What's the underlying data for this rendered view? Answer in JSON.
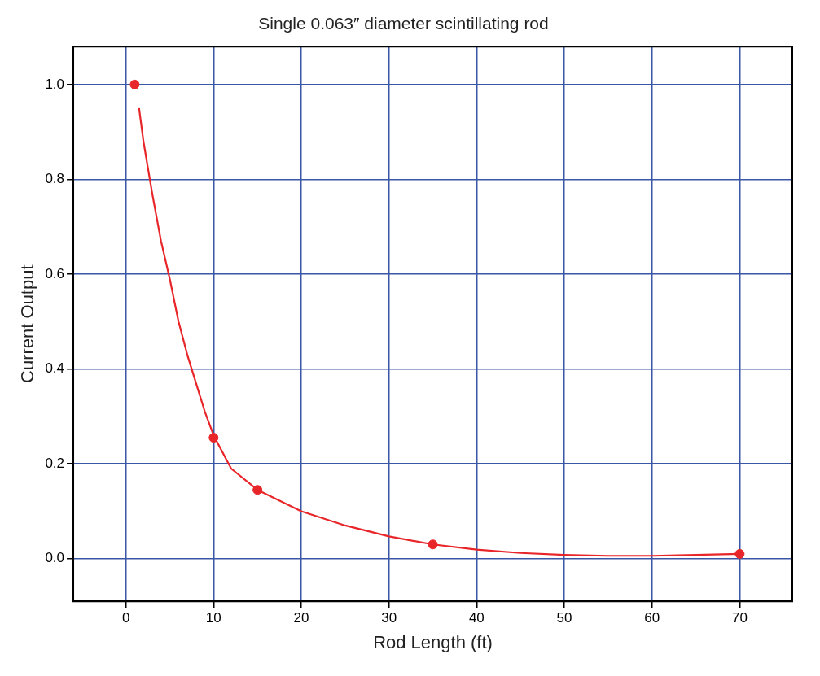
{
  "chart_data": {
    "type": "scatter",
    "title": "Single 0.063″ diameter scintillating rod",
    "xlabel": "Rod Length (ft)",
    "ylabel": "Current Output",
    "xlim": [
      -6,
      76
    ],
    "xticks": [
      0,
      10,
      20,
      30,
      40,
      50,
      60,
      70
    ],
    "ylim": [
      -0.09,
      1.08
    ],
    "yticks": [
      {
        "value": 0,
        "label": "0.0"
      },
      0.2,
      0.4,
      0.6,
      0.8,
      {
        "value": 1,
        "label": "1.0"
      }
    ],
    "grid": true,
    "legend": false,
    "series": [
      {
        "type": "line",
        "marker": "none",
        "line_style": "solid",
        "color": "#e8262a",
        "x": [
          1.5,
          2,
          3,
          4,
          5,
          6,
          7,
          8,
          9,
          10,
          12,
          15,
          20,
          25,
          30,
          35,
          40,
          45,
          50,
          55,
          60,
          65,
          70
        ],
        "values": [
          0.95,
          0.88,
          0.77,
          0.67,
          0.59,
          0.5,
          0.43,
          0.37,
          0.31,
          0.26,
          0.19,
          0.145,
          0.1,
          0.07,
          0.047,
          0.03,
          0.019,
          0.012,
          0.008,
          0.006,
          0.006,
          0.008,
          0.01
        ]
      },
      {
        "marker": "circle",
        "color": "#e8262a",
        "x": [
          1,
          10,
          15,
          35,
          70
        ],
        "values": [
          1.0,
          0.255,
          0.145,
          0.03,
          0.01
        ]
      }
    ]
  }
}
